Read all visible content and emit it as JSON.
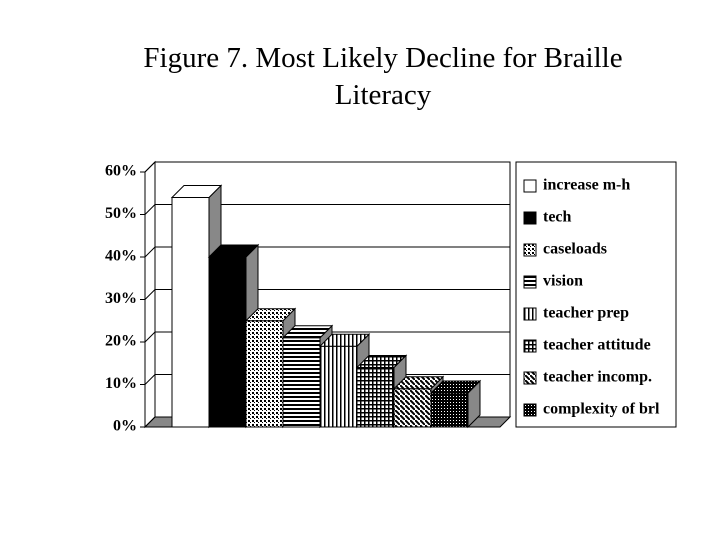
{
  "chart_data": {
    "type": "bar3d",
    "title": "Figure 7. Most Likely Decline for Braille Literacy",
    "categories": [
      "increase m-h",
      "tech",
      "caseloads",
      "vision",
      "teacher prep",
      "teacher attitude",
      "teacher incomp.",
      "complexity of brl"
    ],
    "values": [
      54,
      40,
      25,
      21,
      19,
      14,
      9,
      8
    ],
    "color": "#000000",
    "ylim": [
      0,
      60
    ],
    "yticks": [
      {
        "value": 0,
        "label": "0%"
      },
      {
        "value": 10,
        "label": "10%"
      },
      {
        "value": 20,
        "label": "20%"
      },
      {
        "value": 30,
        "label": "30%"
      },
      {
        "value": 40,
        "label": "40%"
      },
      {
        "value": 50,
        "label": "50%"
      },
      {
        "value": 60,
        "label": "60%"
      }
    ],
    "grid": true,
    "legend": "right"
  }
}
